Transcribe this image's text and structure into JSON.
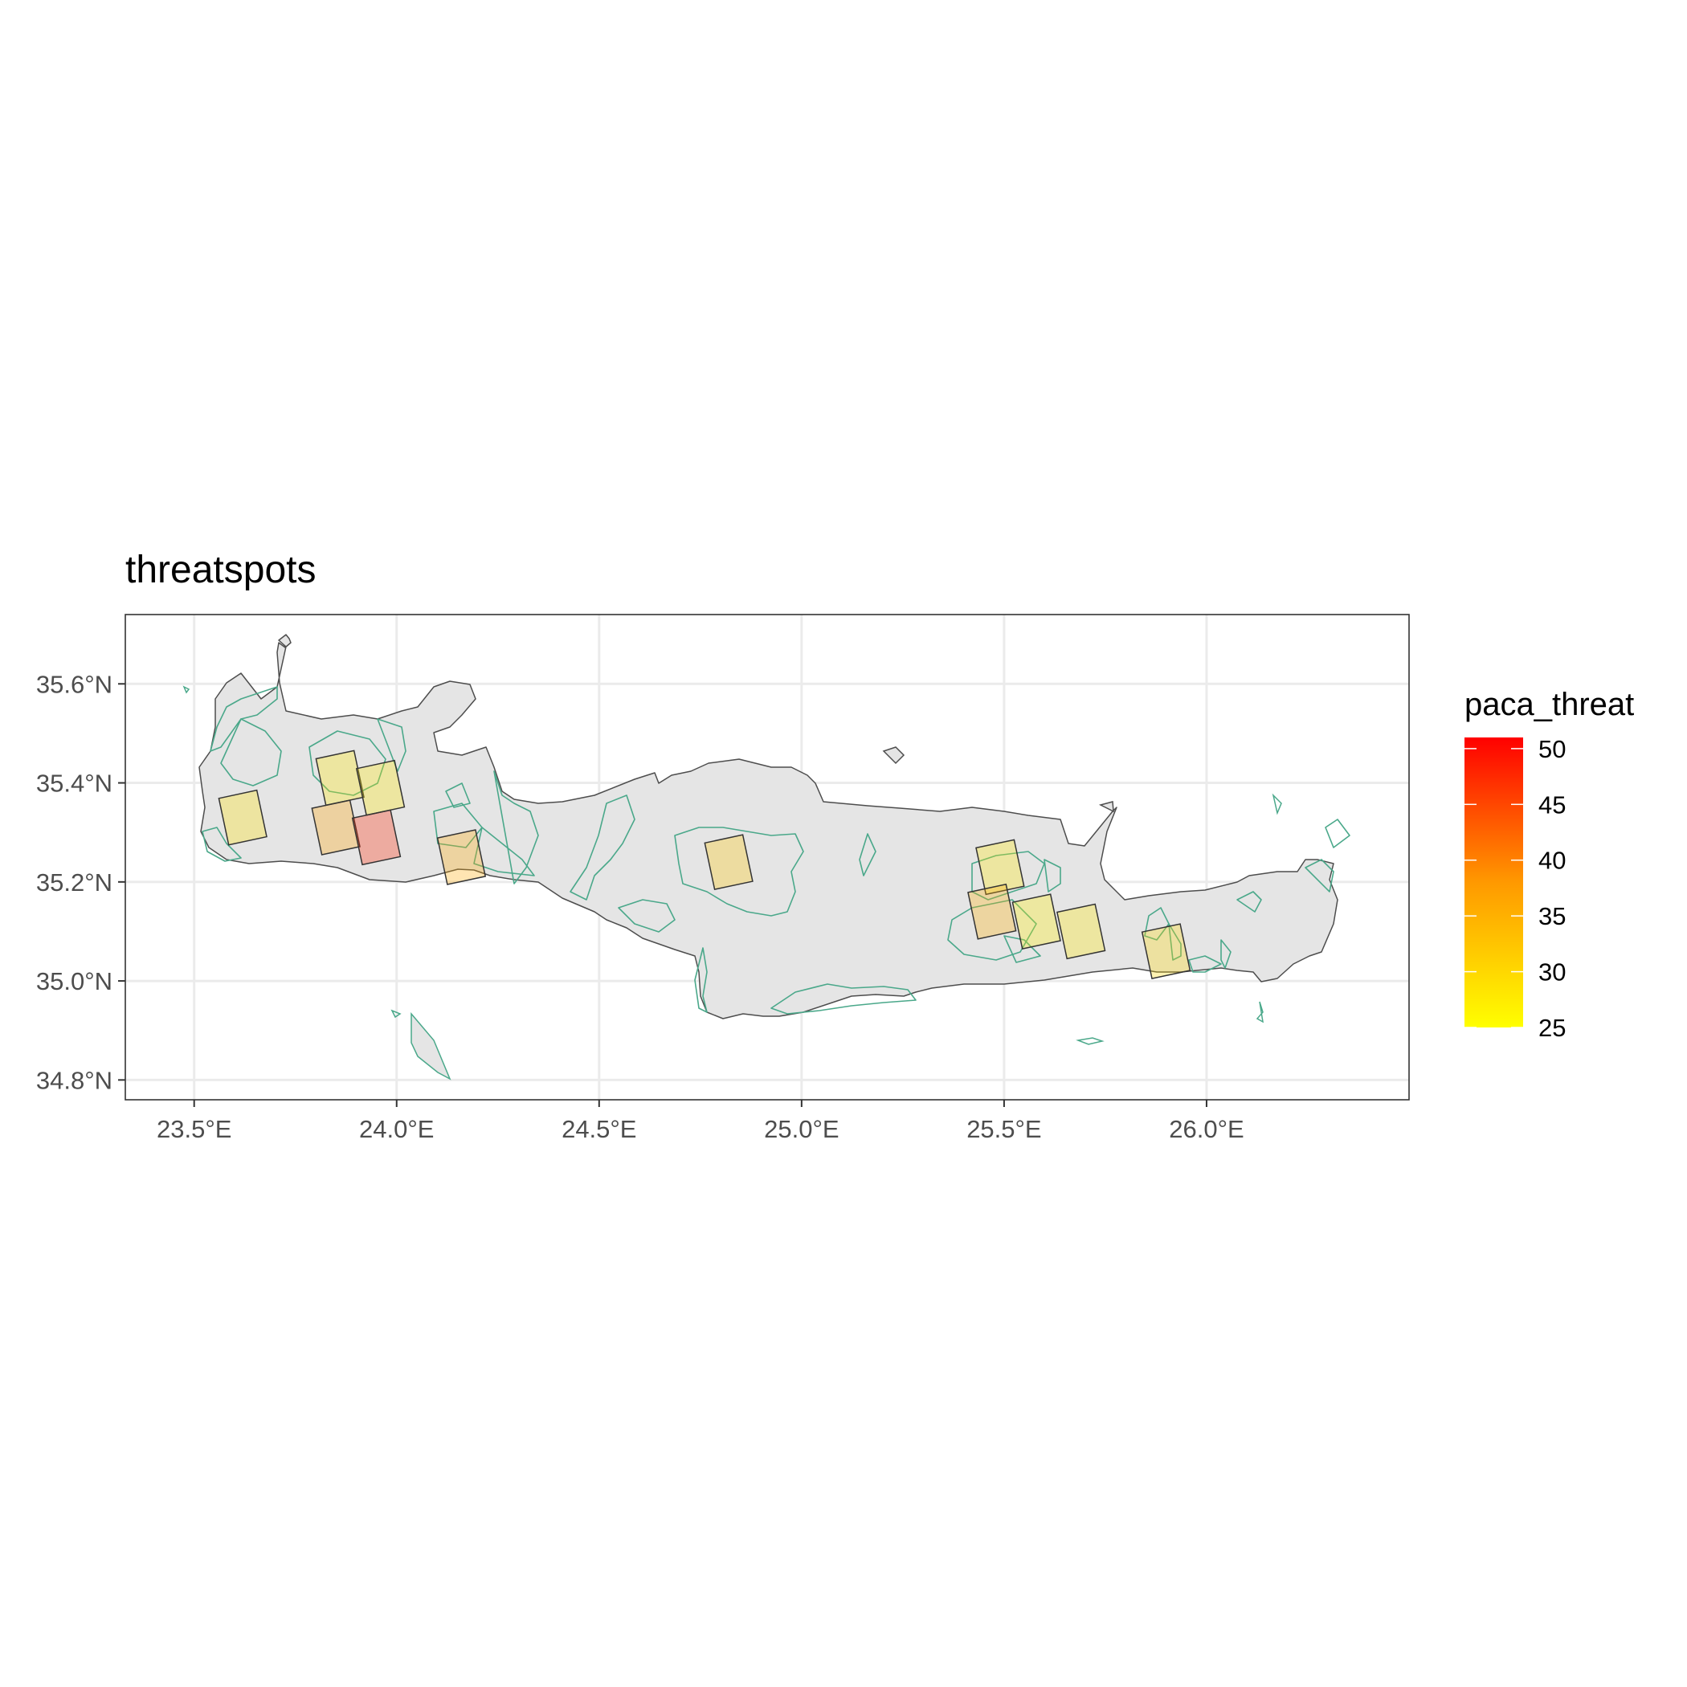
{
  "chart_data": {
    "type": "map",
    "title": "threatspots",
    "xlabel": "",
    "ylabel": "",
    "xlim": [
      23.33,
      26.5
    ],
    "ylim": [
      34.76,
      35.74
    ],
    "x_ticks": [
      {
        "value": 23.5,
        "label": "23.5°E"
      },
      {
        "value": 24.0,
        "label": "24.0°E"
      },
      {
        "value": 24.5,
        "label": "24.5°E"
      },
      {
        "value": 25.0,
        "label": "25.0°E"
      },
      {
        "value": 25.5,
        "label": "25.5°E"
      },
      {
        "value": 26.0,
        "label": "26.0°E"
      }
    ],
    "y_ticks": [
      {
        "value": 35.6,
        "label": "35.6°N"
      },
      {
        "value": 35.4,
        "label": "35.4°N"
      },
      {
        "value": 35.2,
        "label": "35.2°N"
      },
      {
        "value": 35.0,
        "label": "35.0°N"
      },
      {
        "value": 34.8,
        "label": "34.8°N"
      }
    ],
    "grid": true,
    "legend": {
      "title": "paca_threat",
      "position": "right",
      "min": 25,
      "max": 51,
      "color_low": "#ffff00",
      "color_high": "#ff0000",
      "labels": [
        50,
        45,
        40,
        35,
        30,
        25
      ]
    },
    "colors": {
      "land_fill": "#e5e5e5",
      "coast_stroke": "#4d4d4d",
      "protected_area_stroke": "#4aa88a",
      "cell_stroke": "#333333",
      "panel_border": "#333333",
      "gridline": "#ebebeb"
    },
    "cells": [
      {
        "lon": 23.62,
        "lat": 35.33,
        "paca_threat": 29
      },
      {
        "lon": 23.86,
        "lat": 35.41,
        "paca_threat": 28
      },
      {
        "lon": 23.96,
        "lat": 35.39,
        "paca_threat": 28
      },
      {
        "lon": 23.85,
        "lat": 35.31,
        "paca_threat": 37
      },
      {
        "lon": 23.95,
        "lat": 35.29,
        "paca_threat": 48
      },
      {
        "lon": 24.16,
        "lat": 35.25,
        "paca_threat": 36
      },
      {
        "lon": 24.82,
        "lat": 35.24,
        "paca_threat": 32
      },
      {
        "lon": 25.49,
        "lat": 35.23,
        "paca_threat": 28
      },
      {
        "lon": 25.47,
        "lat": 35.14,
        "paca_threat": 35
      },
      {
        "lon": 25.58,
        "lat": 35.12,
        "paca_threat": 27
      },
      {
        "lon": 25.69,
        "lat": 35.1,
        "paca_threat": 28
      },
      {
        "lon": 25.9,
        "lat": 35.06,
        "paca_threat": 30
      }
    ]
  }
}
